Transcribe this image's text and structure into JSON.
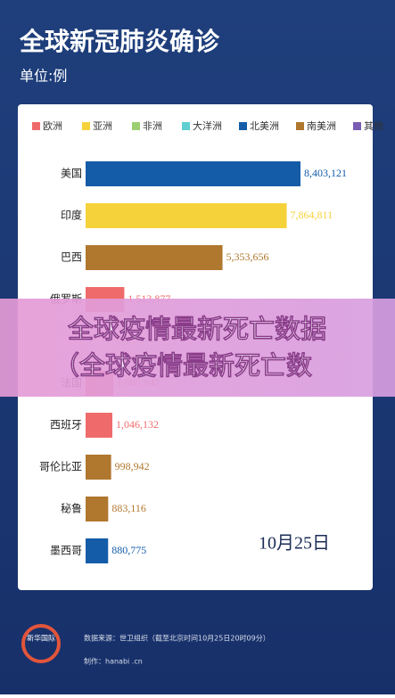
{
  "chart_data": {
    "type": "hbar",
    "title": "全球新冠肺炎确诊",
    "subtitle": "单位:例",
    "legend": [
      {
        "name": "欧洲",
        "color": "#ef6b6b"
      },
      {
        "name": "亚洲",
        "color": "#f6d23a"
      },
      {
        "name": "非洲",
        "color": "#9ccf72"
      },
      {
        "name": "大洋洲",
        "color": "#5fcfcf"
      },
      {
        "name": "北美洲",
        "color": "#145ca8"
      },
      {
        "name": "南美洲",
        "color": "#b0772e"
      },
      {
        "name": "其他",
        "color": "#7a5cb2"
      }
    ],
    "categories": [
      "美国",
      "印度",
      "巴西",
      "俄罗斯",
      "法国",
      "西班牙",
      "哥伦比亚",
      "秘鲁",
      "墨西哥"
    ],
    "values": [
      8403121,
      7864811,
      5353656,
      1513877,
      1085942,
      1046132,
      998942,
      883116,
      880775
    ],
    "value_labels": [
      "8,403,121",
      "7,864,811",
      "5,353,656",
      "1,513,877",
      "1,085,942",
      "1,046,132",
      "998,942",
      "883,116",
      "880,775"
    ],
    "colors": [
      "#145ca8",
      "#f6d23a",
      "#b0772e",
      "#ef6b6b",
      "#ef6b6b",
      "#ef6b6b",
      "#b0772e",
      "#b0772e",
      "#145ca8"
    ],
    "annotation": "10月25日"
  },
  "overlay": {
    "line1": "全球疫情最新死亡数据",
    "line2": "（全球疫情最新死亡数"
  },
  "footer": {
    "logo": "新华国际",
    "source": "数据来源：世卫组织（截至北京时间10月25日20时09分）",
    "credit": "制作：hanabi .cn"
  }
}
